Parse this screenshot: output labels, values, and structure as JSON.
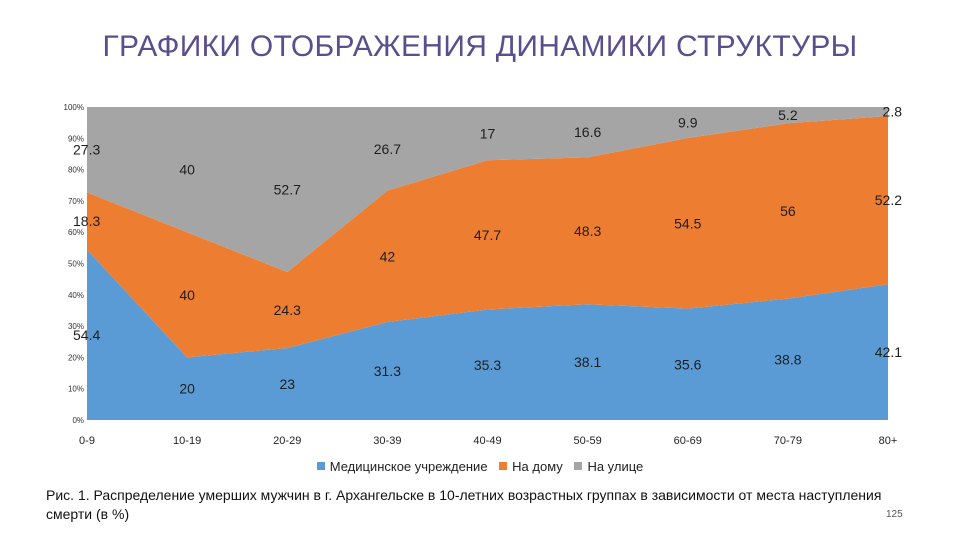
{
  "slide": {
    "title": "ГРАФИКИ ОТОБРАЖЕНИЯ ДИНАМИКИ СТРУКТУРЫ",
    "caption": "Рис. 1. Распределение умерших мужчин в г. Архангельске в 10-летних возрастных группах в зависимости от места наступления смерти (в %)",
    "page_number": "125"
  },
  "chart_data": {
    "type": "area",
    "stacked": "percent",
    "categories": [
      "0-9",
      "10-19",
      "20-29",
      "30-39",
      "40-49",
      "50-59",
      "60-69",
      "70-79",
      "80+"
    ],
    "y_ticks": [
      "0%",
      "10%",
      "20%",
      "30%",
      "40%",
      "50%",
      "60%",
      "70%",
      "80%",
      "90%",
      "100%"
    ],
    "ylim": [
      0,
      100
    ],
    "legend_position": "bottom",
    "series": [
      {
        "name": "Медицинское учреждение",
        "color": "#5b9bd5",
        "values": [
          54.4,
          20,
          23,
          31.3,
          35.3,
          38.1,
          35.6,
          38.8,
          42.1
        ]
      },
      {
        "name": "На дому",
        "color": "#ed7d31",
        "values": [
          18.3,
          40,
          24.3,
          42,
          47.7,
          48.3,
          54.5,
          56,
          52.2
        ]
      },
      {
        "name": "На улице",
        "color": "#a5a5a5",
        "values": [
          27.3,
          40,
          52.7,
          26.7,
          17,
          16.6,
          9.9,
          5.2,
          2.8
        ]
      }
    ]
  }
}
